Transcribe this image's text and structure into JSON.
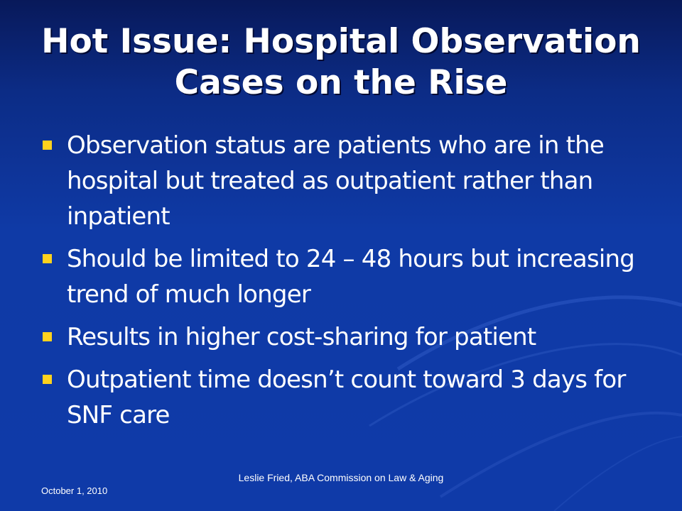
{
  "slide": {
    "title": "Hot Issue: Hospital Observation Cases on the Rise",
    "bullets": [
      "Observation status are patients who are in the hospital but treated as outpatient rather than inpatient",
      "Should be limited to 24 – 48 hours but increasing trend of much longer",
      "Results in higher cost-sharing for patient",
      "Outpatient time doesn’t count toward 3 days for SNF care"
    ],
    "footer": {
      "date": "October 1, 2010",
      "author": "Leslie Fried, ABA Commission on Law & Aging"
    }
  },
  "colors": {
    "background": "#0f3aa6",
    "bullet_marker": "#ffd21e",
    "text": "#ffffff"
  }
}
